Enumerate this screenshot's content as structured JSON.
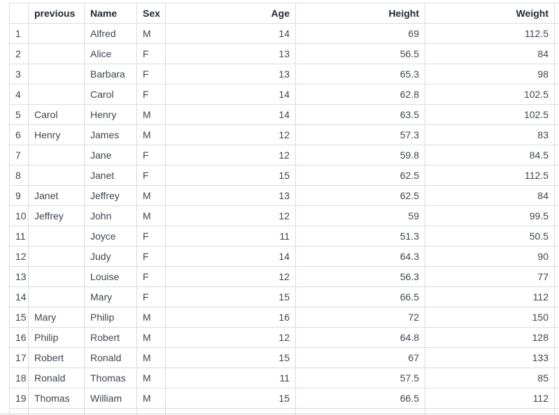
{
  "table": {
    "name": "class-dataset-table",
    "columns": [
      {
        "id": "rownum",
        "label": "",
        "align": "left"
      },
      {
        "id": "previous",
        "label": "previous",
        "align": "left"
      },
      {
        "id": "name",
        "label": "Name",
        "align": "left"
      },
      {
        "id": "sex",
        "label": "Sex",
        "align": "left"
      },
      {
        "id": "age",
        "label": "Age",
        "align": "right"
      },
      {
        "id": "height",
        "label": "Height",
        "align": "right"
      },
      {
        "id": "weight",
        "label": "Weight",
        "align": "right"
      }
    ],
    "rows": [
      [
        "1",
        "",
        "Alfred",
        "M",
        "14",
        "69",
        "112.5"
      ],
      [
        "2",
        "",
        "Alice",
        "F",
        "13",
        "56.5",
        "84"
      ],
      [
        "3",
        "",
        "Barbara",
        "F",
        "13",
        "65.3",
        "98"
      ],
      [
        "4",
        "",
        "Carol",
        "F",
        "14",
        "62.8",
        "102.5"
      ],
      [
        "5",
        "Carol",
        "Henry",
        "M",
        "14",
        "63.5",
        "102.5"
      ],
      [
        "6",
        "Henry",
        "James",
        "M",
        "12",
        "57.3",
        "83"
      ],
      [
        "7",
        "",
        "Jane",
        "F",
        "12",
        "59.8",
        "84.5"
      ],
      [
        "8",
        "",
        "Janet",
        "F",
        "15",
        "62.5",
        "112.5"
      ],
      [
        "9",
        "Janet",
        "Jeffrey",
        "M",
        "13",
        "62.5",
        "84"
      ],
      [
        "10",
        "Jeffrey",
        "John",
        "M",
        "12",
        "59",
        "99.5"
      ],
      [
        "11",
        "",
        "Joyce",
        "F",
        "11",
        "51.3",
        "50.5"
      ],
      [
        "12",
        "",
        "Judy",
        "F",
        "14",
        "64.3",
        "90"
      ],
      [
        "13",
        "",
        "Louise",
        "F",
        "12",
        "56.3",
        "77"
      ],
      [
        "14",
        "",
        "Mary",
        "F",
        "15",
        "66.5",
        "112"
      ],
      [
        "15",
        "Mary",
        "Philip",
        "M",
        "16",
        "72",
        "150"
      ],
      [
        "16",
        "Philip",
        "Robert",
        "M",
        "12",
        "64.8",
        "128"
      ],
      [
        "17",
        "Robert",
        "Ronald",
        "M",
        "15",
        "67",
        "133"
      ],
      [
        "18",
        "Ronald",
        "Thomas",
        "M",
        "11",
        "57.5",
        "85"
      ],
      [
        "19",
        "Thomas",
        "William",
        "M",
        "15",
        "66.5",
        "112"
      ]
    ],
    "trailing_empty_row": true
  },
  "colors": {
    "header_text": "#242a33",
    "body_text": "#40464e",
    "grid_border": "#d9dce0",
    "background": "#ffffff",
    "scrollbar_line": "#cfd2d6"
  }
}
